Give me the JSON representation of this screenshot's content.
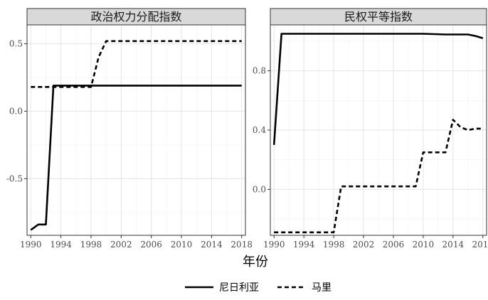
{
  "chart_data": {
    "type": "line",
    "xlabel": "年份",
    "x_ticks": [
      1990,
      1994,
      1998,
      2002,
      2006,
      2010,
      2014,
      2018
    ],
    "grid": true,
    "legend_position": "bottom",
    "legend": [
      {
        "name": "尼日利亚",
        "style": "solid"
      },
      {
        "name": "马里",
        "style": "dashed"
      }
    ],
    "panels": [
      {
        "title": "政治权力分配指数",
        "xlim": [
          1989.5,
          2018.5
        ],
        "ylim": [
          -0.92,
          0.64
        ],
        "y_ticks": [
          0.5,
          0.0,
          -0.5
        ],
        "y_tick_labels": [
          "0.5",
          "0.0",
          "-0.5"
        ],
        "series": [
          {
            "name": "尼日利亚",
            "style": "solid",
            "x": [
              1990,
              1991,
              1992,
              1993,
              1994,
              2000,
              2010,
              2018
            ],
            "y": [
              -0.88,
              -0.84,
              -0.84,
              0.19,
              0.19,
              0.19,
              0.19,
              0.19
            ]
          },
          {
            "name": "马里",
            "style": "dashed",
            "x": [
              1990,
              1992,
              1994,
              1996,
              1998,
              1999,
              2000,
              2005,
              2010,
              2015,
              2018
            ],
            "y": [
              0.18,
              0.18,
              0.18,
              0.18,
              0.18,
              0.4,
              0.52,
              0.52,
              0.52,
              0.52,
              0.52
            ]
          }
        ]
      },
      {
        "title": "民权平等指数",
        "xlim": [
          1989.5,
          2018.5
        ],
        "ylim": [
          -0.31,
          1.11
        ],
        "y_ticks": [
          0.8,
          0.4,
          0.0
        ],
        "y_tick_labels": [
          "0.8",
          "0.4",
          "0.0"
        ],
        "series": [
          {
            "name": "尼日利亚",
            "style": "solid",
            "x": [
              1990,
              1991,
              2000,
              2010,
              2013,
              2016,
              2017,
              2018
            ],
            "y": [
              0.3,
              1.05,
              1.05,
              1.05,
              1.045,
              1.045,
              1.035,
              1.02
            ]
          },
          {
            "name": "马里",
            "style": "dashed",
            "x": [
              1990,
              1995,
              1998,
              1999,
              2000,
              2005,
              2009,
              2010,
              2012,
              2013,
              2014,
              2015,
              2016,
              2017,
              2018
            ],
            "y": [
              -0.29,
              -0.29,
              -0.29,
              0.02,
              0.02,
              0.02,
              0.02,
              0.25,
              0.25,
              0.25,
              0.47,
              0.42,
              0.4,
              0.41,
              0.41
            ]
          }
        ]
      }
    ]
  }
}
